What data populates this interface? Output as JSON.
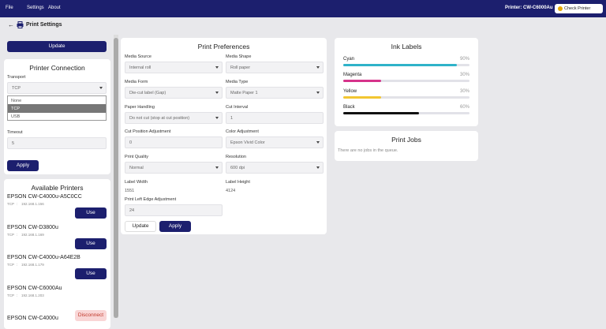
{
  "menu": [
    "File",
    "Settings",
    "About"
  ],
  "printer_status": "Printer: CW-C6000Au",
  "check_button": "Check Printer",
  "page_title": "Print Settings",
  "update_button": "Update",
  "connection": {
    "title": "Printer Connection",
    "transport_label": "Transport",
    "transport_value": "TCP",
    "options": [
      "None",
      "TCP",
      "USB"
    ],
    "selected": 1,
    "timeout_label": "Timeout",
    "timeout_value": "5",
    "apply": "Apply"
  },
  "printers": {
    "title": "Available Printers",
    "items": [
      {
        "name": "EPSON CW-C4000u-A5C0CC",
        "protocol": "TCP",
        "address": "192.168.1.156",
        "action": "Use"
      },
      {
        "name": "EPSON CW-D3800u",
        "protocol": "TCP",
        "address": "192.168.1.169",
        "action": "Use"
      },
      {
        "name": "EPSON CW-C4000u-A64E2B",
        "protocol": "TCP",
        "address": "192.168.1.179",
        "action": "Use"
      },
      {
        "name": "EPSON CW-C6000Au",
        "protocol": "TCP",
        "address": "192.168.1.203",
        "action": "Disconnect"
      },
      {
        "name": "EPSON CW-C4000u"
      }
    ]
  },
  "preferences": {
    "title": "Print Preferences",
    "fields": [
      {
        "label": "Media Source",
        "value": "Internal roll",
        "kind": "select"
      },
      {
        "label": "Media Shape",
        "value": "Roll paper",
        "kind": "select"
      },
      {
        "label": "Media Form",
        "value": "Die-cut label (Gap)",
        "kind": "select"
      },
      {
        "label": "Media Type",
        "value": "Matte Paper 1",
        "kind": "select"
      },
      {
        "label": "Paper Handling",
        "value": "Do not cut (stop at cut position)",
        "kind": "select"
      },
      {
        "label": "Cut Interval",
        "value": "1",
        "kind": "input"
      },
      {
        "label": "Cut Position Adjustment",
        "value": "0",
        "kind": "input"
      },
      {
        "label": "Color Adjustment",
        "value": "Epson Vivid Color",
        "kind": "select"
      },
      {
        "label": "Print Quality",
        "value": "Normal",
        "kind": "select"
      },
      {
        "label": "Resolution",
        "value": "600 dpi",
        "kind": "select"
      },
      {
        "label": "Label Width",
        "value": "1551",
        "kind": "text"
      },
      {
        "label": "Label Height",
        "value": "4124",
        "kind": "text"
      },
      {
        "label": "Print Left Edge Adjustment",
        "value": "24",
        "kind": "input"
      }
    ],
    "update": "Update",
    "apply": "Apply"
  },
  "ink": {
    "title": "Ink Labels",
    "items": [
      {
        "name": "Cyan",
        "value": 90,
        "value_label": "90%",
        "color": "#2fb3c9"
      },
      {
        "name": "Magenta",
        "value": 30,
        "value_label": "30%",
        "color": "#d6338a"
      },
      {
        "name": "Yellow",
        "value": 30,
        "value_label": "30%",
        "color": "#f2c631"
      },
      {
        "name": "Black",
        "value": 60,
        "value_label": "60%",
        "color": "#111111"
      }
    ]
  },
  "jobs": {
    "title": "Print Jobs",
    "empty": "There are no jobs in the queue."
  }
}
